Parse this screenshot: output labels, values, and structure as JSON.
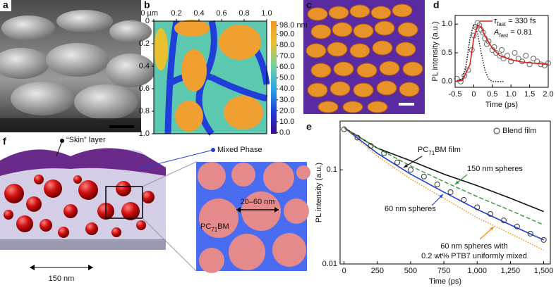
{
  "panel_labels": [
    "a",
    "b",
    "c",
    "d",
    "e",
    "f"
  ],
  "chart_data": [
    {
      "type": "heatmap",
      "xlim": [
        0,
        1
      ],
      "ylim": [
        0,
        1
      ],
      "xticks": [
        {
          "value": 0,
          "label": "0 µm"
        },
        0.2,
        0.4,
        0.6,
        0.8,
        {
          "value": 1,
          "label": "1.0"
        }
      ],
      "yticks": [
        0,
        0.2,
        0.4,
        0.6,
        0.8,
        {
          "value": 1,
          "label": "1.0"
        }
      ],
      "clim": [
        -1,
        102
      ],
      "cticks": [
        {
          "value": 98,
          "label": "98.0 nm"
        },
        {
          "value": 90,
          "label": "90.0"
        },
        {
          "value": 80,
          "label": "80.0"
        },
        {
          "value": 70,
          "label": "70.0"
        },
        {
          "value": 60,
          "label": "60.0"
        },
        {
          "value": 50,
          "label": "50.0"
        },
        {
          "value": 40,
          "label": "40.0"
        },
        {
          "value": 30,
          "label": "30.0"
        },
        {
          "value": 20,
          "label": "20.0"
        },
        {
          "value": 10,
          "label": "10.0"
        },
        {
          "value": 0,
          "label": "0.0"
        }
      ],
      "colormap": [
        "#3a0a8a",
        "#1f3fd8",
        "#2aa8e8",
        "#6fd0a0",
        "#e8c030",
        "#f09a20"
      ]
    },
    {
      "type": "line",
      "xlabel": "Time (ps)",
      "ylabel": "PL intensity (a.u.)",
      "xlim": [
        -0.5,
        2.0
      ],
      "ylim": [
        -0.1,
        1.15
      ],
      "xticks": [
        -0.5,
        0,
        0.5,
        {
          "value": 1,
          "label": "1.0"
        },
        1.5,
        {
          "value": 2,
          "label": "2.0"
        }
      ],
      "yticks": [
        {
          "value": 0,
          "label": "0.0"
        },
        0.5,
        {
          "value": 1,
          "label": "1.0"
        }
      ],
      "series": [
        {
          "style": "scatter",
          "color": "#666666",
          "x": [
            -0.45,
            -0.35,
            -0.25,
            -0.15,
            -0.05,
            0.0,
            0.05,
            0.1,
            0.15,
            0.2,
            0.25,
            0.3,
            0.35,
            0.4,
            0.5,
            0.55,
            0.6,
            0.7,
            0.75,
            0.8,
            0.9,
            1.0,
            1.1,
            1.2,
            1.3,
            1.4,
            1.5,
            1.6,
            1.7,
            1.8,
            1.9,
            2.0
          ],
          "values": [
            0.05,
            0.0,
            0.1,
            0.2,
            0.55,
            0.8,
            0.95,
            1.02,
            0.98,
            0.9,
            0.85,
            0.75,
            0.65,
            0.7,
            0.55,
            0.6,
            0.5,
            0.45,
            0.55,
            0.4,
            0.45,
            0.35,
            0.5,
            0.4,
            0.35,
            0.45,
            0.3,
            0.4,
            0.35,
            0.3,
            0.28,
            0.32
          ]
        },
        {
          "style": "dotted",
          "color": "#000000",
          "x": [
            -0.5,
            -0.3,
            -0.2,
            -0.1,
            0,
            0.1,
            0.2,
            0.3,
            0.4,
            0.5,
            0.8
          ],
          "values": [
            0,
            0.05,
            0.3,
            0.75,
            1.0,
            0.85,
            0.5,
            0.2,
            0.05,
            0,
            0
          ]
        },
        {
          "style": "solid",
          "color": "#e0201b",
          "x": [
            -0.5,
            -0.3,
            -0.1,
            0,
            0.1,
            0.2,
            0.3,
            0.5,
            0.7,
            1.0,
            1.3,
            1.6,
            2.0
          ],
          "values": [
            0,
            0.02,
            0.3,
            0.75,
            0.98,
            0.95,
            0.8,
            0.58,
            0.45,
            0.38,
            0.34,
            0.32,
            0.3
          ],
          "legend": {
            "symbol": "τ",
            "sub": "fast",
            "text": " = 330 fs"
          }
        }
      ],
      "legend_extra": {
        "symbol": "A",
        "sub": "fast",
        "text": " = 0.81"
      }
    },
    {
      "type": "line",
      "xlabel": "Time (ps)",
      "ylabel": "PL intensity (a.u.)",
      "log_y": true,
      "xlim": [
        -30,
        1550
      ],
      "ylim": [
        0.01,
        0.33
      ],
      "xticks": [
        0,
        250,
        500,
        750,
        {
          "value": 1000,
          "label": "1,000"
        },
        {
          "value": 1250,
          "label": "1,250"
        },
        {
          "value": 1500,
          "label": "1,500"
        }
      ],
      "yticks": [
        0.01,
        0.1
      ],
      "series": [
        {
          "style": "solid",
          "color": "#111111",
          "label": {
            "text": "PC",
            "sub": "71",
            "suffix": "BM film"
          },
          "x": [
            0,
            250,
            500,
            750,
            1000,
            1250,
            1500
          ],
          "values": [
            0.28,
            0.17,
            0.125,
            0.09,
            0.068,
            0.05,
            0.036
          ]
        },
        {
          "style": "dashed",
          "color": "#2e9a2e",
          "label": "150 nm spheres",
          "x": [
            0,
            250,
            500,
            750,
            1000,
            1250,
            1500
          ],
          "values": [
            0.28,
            0.17,
            0.11,
            0.075,
            0.052,
            0.037,
            0.026
          ]
        },
        {
          "style": "solid",
          "color": "#1f3fd8",
          "label": "60 nm spheres",
          "x": [
            0,
            250,
            500,
            750,
            1000,
            1250,
            1500
          ],
          "values": [
            0.28,
            0.15,
            0.09,
            0.058,
            0.038,
            0.026,
            0.018
          ]
        },
        {
          "style": "dotted",
          "color": "#f08a10",
          "label": [
            "60 nm spheres with",
            "0.2 wt% PTB7 uniformly mixed"
          ],
          "x": [
            0,
            250,
            500,
            750,
            1000,
            1250,
            1500
          ],
          "values": [
            0.28,
            0.14,
            0.08,
            0.05,
            0.031,
            0.021,
            0.014
          ]
        },
        {
          "style": "scatter",
          "color": "#333333",
          "name": "Blend film",
          "x": [
            0,
            100,
            200,
            300,
            400,
            500,
            600,
            700,
            800,
            900,
            1000,
            1100,
            1200,
            1300,
            1400,
            1500
          ],
          "values": [
            0.27,
            0.22,
            0.18,
            0.15,
            0.12,
            0.1,
            0.085,
            0.07,
            0.058,
            0.048,
            0.04,
            0.034,
            0.029,
            0.025,
            0.021,
            0.018
          ]
        }
      ]
    }
  ],
  "figure_f": {
    "skin_label": "“Skin” layer",
    "mixed_label": "Mixed Phase",
    "scale_label": "150 nm",
    "inset_label": {
      "text": "PC",
      "sub": "71",
      "suffix": "BM"
    },
    "size_label": "20–60 nm"
  }
}
